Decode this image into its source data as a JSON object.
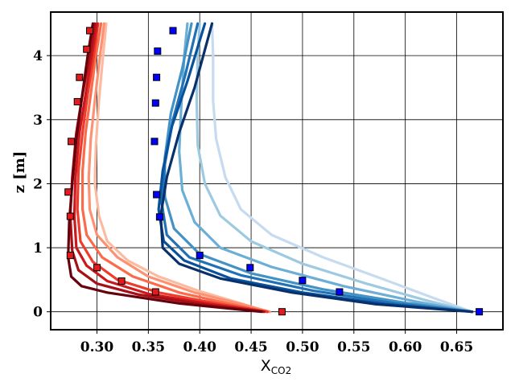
{
  "chart_data": {
    "type": "line",
    "xlabel": "X",
    "xlabel_sub": "CO2",
    "ylabel": "z [m]",
    "xlim": [
      0.255,
      0.695
    ],
    "ylim": [
      -0.28,
      4.68
    ],
    "xticks": [
      0.3,
      0.35,
      0.4,
      0.45,
      0.5,
      0.55,
      0.6,
      0.65
    ],
    "xtick_labels": [
      "0.30",
      "0.35",
      "0.40",
      "0.45",
      "0.50",
      "0.55",
      "0.60",
      "0.65"
    ],
    "yticks": [
      0,
      1,
      2,
      3,
      4
    ],
    "ytick_labels": [
      "0",
      "1",
      "2",
      "3",
      "4"
    ],
    "grid": true,
    "legend": false,
    "colors": {
      "red_family": [
        "#fcbba1",
        "#fc9272",
        "#fb6a4a",
        "#ef3b2c",
        "#cb181d",
        "#a50f15",
        "#67000d"
      ],
      "blue_family": [
        "#c6dbef",
        "#9ecae1",
        "#6baed6",
        "#4292c6",
        "#2171b5",
        "#08519c",
        "#08306b"
      ],
      "red_marker": "#e41a1c",
      "blue_marker": "#0000ff"
    },
    "series": [
      {
        "family": "red",
        "color": "#fcbba1",
        "points": [
          [
            0.466,
            0
          ],
          [
            0.44,
            0.13
          ],
          [
            0.4,
            0.32
          ],
          [
            0.36,
            0.55
          ],
          [
            0.33,
            0.8
          ],
          [
            0.31,
            1.1
          ],
          [
            0.302,
            1.5
          ],
          [
            0.298,
            2.0
          ],
          [
            0.299,
            2.6
          ],
          [
            0.302,
            3.3
          ],
          [
            0.306,
            4.0
          ],
          [
            0.309,
            4.5
          ]
        ]
      },
      {
        "family": "red",
        "color": "#fc9272",
        "points": [
          [
            0.468,
            0
          ],
          [
            0.44,
            0.12
          ],
          [
            0.395,
            0.3
          ],
          [
            0.35,
            0.55
          ],
          [
            0.32,
            0.85
          ],
          [
            0.3,
            1.2
          ],
          [
            0.293,
            1.6
          ],
          [
            0.292,
            2.1
          ],
          [
            0.294,
            2.7
          ],
          [
            0.298,
            3.3
          ],
          [
            0.303,
            4.0
          ],
          [
            0.307,
            4.5
          ]
        ]
      },
      {
        "family": "red",
        "color": "#fb6a4a",
        "points": [
          [
            0.465,
            0
          ],
          [
            0.43,
            0.12
          ],
          [
            0.38,
            0.3
          ],
          [
            0.335,
            0.55
          ],
          [
            0.305,
            0.85
          ],
          [
            0.29,
            1.2
          ],
          [
            0.286,
            1.6
          ],
          [
            0.286,
            2.2
          ],
          [
            0.289,
            2.8
          ],
          [
            0.294,
            3.4
          ],
          [
            0.299,
            4.0
          ],
          [
            0.304,
            4.5
          ]
        ]
      },
      {
        "family": "red",
        "color": "#ef3b2c",
        "points": [
          [
            0.466,
            0
          ],
          [
            0.42,
            0.12
          ],
          [
            0.36,
            0.3
          ],
          [
            0.32,
            0.5
          ],
          [
            0.296,
            0.78
          ],
          [
            0.284,
            1.1
          ],
          [
            0.281,
            1.6
          ],
          [
            0.282,
            2.2
          ],
          [
            0.286,
            2.8
          ],
          [
            0.291,
            3.4
          ],
          [
            0.297,
            4.0
          ],
          [
            0.301,
            4.5
          ]
        ]
      },
      {
        "family": "red",
        "color": "#cb181d",
        "points": [
          [
            0.463,
            0
          ],
          [
            0.41,
            0.12
          ],
          [
            0.35,
            0.28
          ],
          [
            0.31,
            0.48
          ],
          [
            0.29,
            0.72
          ],
          [
            0.28,
            1.0
          ],
          [
            0.278,
            1.5
          ],
          [
            0.279,
            2.1
          ],
          [
            0.283,
            2.8
          ],
          [
            0.289,
            3.4
          ],
          [
            0.295,
            4.0
          ],
          [
            0.3,
            4.5
          ]
        ]
      },
      {
        "family": "red",
        "color": "#a50f15",
        "points": [
          [
            0.462,
            0
          ],
          [
            0.4,
            0.12
          ],
          [
            0.34,
            0.27
          ],
          [
            0.3,
            0.44
          ],
          [
            0.282,
            0.65
          ],
          [
            0.276,
            0.95
          ],
          [
            0.274,
            1.5
          ],
          [
            0.276,
            2.1
          ],
          [
            0.28,
            2.8
          ],
          [
            0.286,
            3.4
          ],
          [
            0.293,
            4.0
          ],
          [
            0.298,
            4.5
          ]
        ]
      },
      {
        "family": "red",
        "color": "#67000d",
        "points": [
          [
            0.46,
            0
          ],
          [
            0.38,
            0.13
          ],
          [
            0.31,
            0.3
          ],
          [
            0.285,
            0.4
          ],
          [
            0.275,
            0.55
          ],
          [
            0.272,
            0.85
          ],
          [
            0.273,
            1.4
          ],
          [
            0.276,
            2.0
          ],
          [
            0.28,
            2.7
          ],
          [
            0.285,
            3.3
          ],
          [
            0.291,
            4.0
          ],
          [
            0.296,
            4.5
          ]
        ]
      },
      {
        "family": "blue",
        "color": "#c6dbef",
        "points": [
          [
            0.665,
            0
          ],
          [
            0.63,
            0.2
          ],
          [
            0.58,
            0.5
          ],
          [
            0.52,
            0.85
          ],
          [
            0.47,
            1.2
          ],
          [
            0.44,
            1.6
          ],
          [
            0.425,
            2.1
          ],
          [
            0.416,
            2.7
          ],
          [
            0.413,
            3.3
          ],
          [
            0.413,
            4.0
          ],
          [
            0.412,
            4.5
          ]
        ]
      },
      {
        "family": "blue",
        "color": "#9ecae1",
        "points": [
          [
            0.665,
            0
          ],
          [
            0.62,
            0.18
          ],
          [
            0.56,
            0.45
          ],
          [
            0.5,
            0.75
          ],
          [
            0.45,
            1.1
          ],
          [
            0.42,
            1.5
          ],
          [
            0.405,
            2.0
          ],
          [
            0.398,
            2.6
          ],
          [
            0.397,
            3.3
          ],
          [
            0.398,
            4.0
          ],
          [
            0.4,
            4.5
          ]
        ]
      },
      {
        "family": "blue",
        "color": "#6baed6",
        "points": [
          [
            0.665,
            0
          ],
          [
            0.61,
            0.16
          ],
          [
            0.54,
            0.4
          ],
          [
            0.47,
            0.7
          ],
          [
            0.42,
            1.0
          ],
          [
            0.395,
            1.4
          ],
          [
            0.383,
            1.9
          ],
          [
            0.38,
            2.5
          ],
          [
            0.382,
            3.2
          ],
          [
            0.385,
            4.0
          ],
          [
            0.388,
            4.5
          ]
        ]
      },
      {
        "family": "blue",
        "color": "#4292c6",
        "points": [
          [
            0.665,
            0
          ],
          [
            0.6,
            0.14
          ],
          [
            0.52,
            0.35
          ],
          [
            0.45,
            0.6
          ],
          [
            0.4,
            0.9
          ],
          [
            0.375,
            1.3
          ],
          [
            0.366,
            1.8
          ],
          [
            0.366,
            2.4
          ],
          [
            0.372,
            3.1
          ],
          [
            0.383,
            3.8
          ],
          [
            0.392,
            4.5
          ]
        ]
      },
      {
        "family": "blue",
        "color": "#2171b5",
        "points": [
          [
            0.665,
            0
          ],
          [
            0.59,
            0.13
          ],
          [
            0.51,
            0.33
          ],
          [
            0.44,
            0.57
          ],
          [
            0.39,
            0.85
          ],
          [
            0.368,
            1.2
          ],
          [
            0.363,
            1.7
          ],
          [
            0.366,
            2.3
          ],
          [
            0.374,
            3.0
          ],
          [
            0.386,
            3.7
          ],
          [
            0.398,
            4.5
          ]
        ]
      },
      {
        "family": "blue",
        "color": "#08519c",
        "points": [
          [
            0.665,
            0
          ],
          [
            0.58,
            0.12
          ],
          [
            0.5,
            0.3
          ],
          [
            0.43,
            0.52
          ],
          [
            0.385,
            0.8
          ],
          [
            0.365,
            1.1
          ],
          [
            0.36,
            1.6
          ],
          [
            0.364,
            2.2
          ],
          [
            0.373,
            2.9
          ],
          [
            0.388,
            3.6
          ],
          [
            0.405,
            4.5
          ]
        ]
      },
      {
        "family": "blue",
        "color": "#08306b",
        "points": [
          [
            0.665,
            0
          ],
          [
            0.57,
            0.12
          ],
          [
            0.49,
            0.3
          ],
          [
            0.42,
            0.52
          ],
          [
            0.38,
            0.75
          ],
          [
            0.364,
            1.0
          ],
          [
            0.362,
            1.5
          ],
          [
            0.368,
            2.1
          ],
          [
            0.38,
            2.8
          ],
          [
            0.395,
            3.5
          ],
          [
            0.412,
            4.5
          ]
        ]
      }
    ],
    "markers": [
      {
        "family": "red",
        "points": [
          [
            0.48,
            0
          ],
          [
            0.357,
            0.31
          ],
          [
            0.324,
            0.48
          ],
          [
            0.3,
            0.69
          ],
          [
            0.274,
            0.88
          ],
          [
            0.274,
            1.49
          ],
          [
            0.272,
            1.87
          ],
          [
            0.275,
            2.66
          ],
          [
            0.281,
            3.28
          ],
          [
            0.283,
            3.66
          ],
          [
            0.29,
            4.1
          ],
          [
            0.293,
            4.39
          ]
        ]
      },
      {
        "family": "blue",
        "points": [
          [
            0.672,
            0
          ],
          [
            0.536,
            0.31
          ],
          [
            0.5,
            0.49
          ],
          [
            0.449,
            0.69
          ],
          [
            0.4,
            0.88
          ],
          [
            0.361,
            1.48
          ],
          [
            0.358,
            1.83
          ],
          [
            0.356,
            2.66
          ],
          [
            0.357,
            3.26
          ],
          [
            0.358,
            3.66
          ],
          [
            0.359,
            4.07
          ],
          [
            0.374,
            4.39
          ]
        ]
      }
    ]
  }
}
